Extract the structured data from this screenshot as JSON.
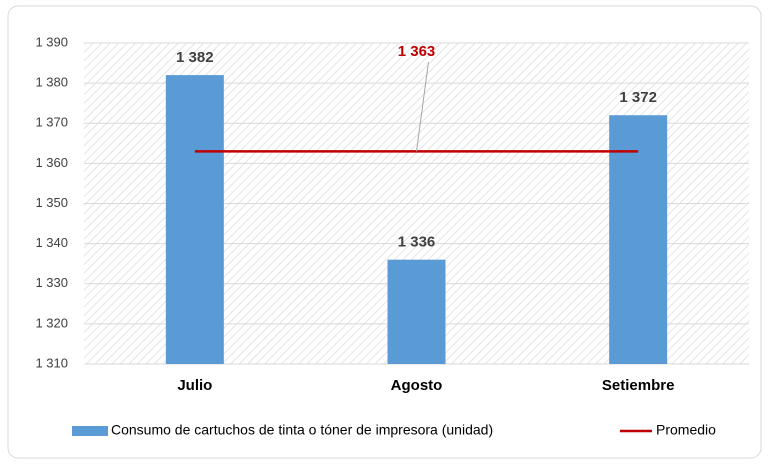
{
  "chart_data": {
    "type": "bar",
    "categories": [
      "Julio",
      "Agosto",
      "Setiembre"
    ],
    "series": [
      {
        "name": "Consumo de cartuchos de tinta o tóner de impresora (unidad)",
        "color": "#5b9bd5",
        "type": "bar",
        "values": [
          1382,
          1336,
          1372
        ],
        "value_labels": [
          "1 382",
          "1 336",
          "1 372"
        ]
      },
      {
        "name": "Promedio",
        "color": "#c00000",
        "type": "line",
        "values": [
          1363,
          1363,
          1363
        ],
        "value_labels": [
          null,
          "1 363",
          null
        ]
      }
    ],
    "ylim": [
      1310,
      1390
    ],
    "yticks": [
      {
        "value": 1310,
        "label": "1 310"
      },
      {
        "value": 1320,
        "label": "1 320"
      },
      {
        "value": 1330,
        "label": "1 330"
      },
      {
        "value": 1340,
        "label": "1 340"
      },
      {
        "value": 1350,
        "label": "1 350"
      },
      {
        "value": 1360,
        "label": "1 360"
      },
      {
        "value": 1370,
        "label": "1 370"
      },
      {
        "value": 1380,
        "label": "1 380"
      },
      {
        "value": 1390,
        "label": "1 390"
      }
    ],
    "grid": true,
    "legend": "bottom"
  }
}
